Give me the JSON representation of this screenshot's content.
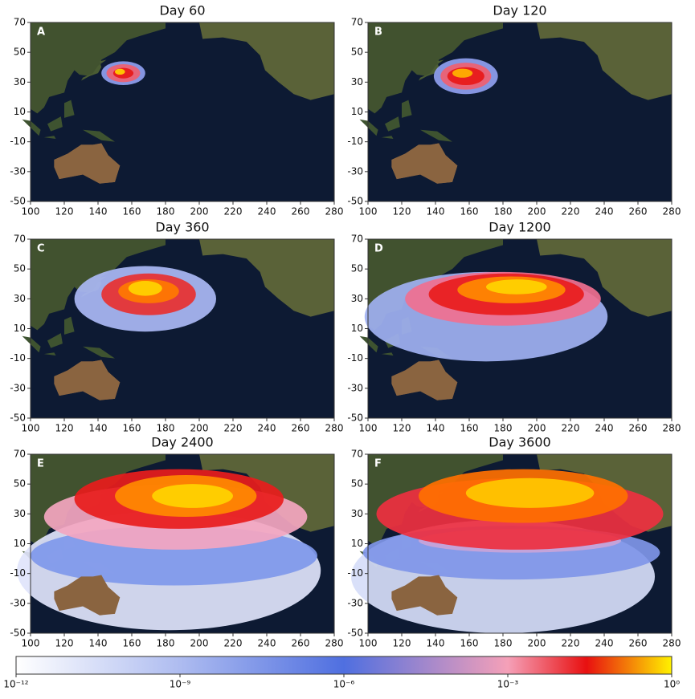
{
  "chart_data": [
    {
      "type": "map",
      "title": "Day 60",
      "letter": "A",
      "xlim": [
        100,
        280
      ],
      "ylim": [
        -50,
        70
      ],
      "xticks": [
        100,
        120,
        140,
        160,
        180,
        200,
        220,
        240,
        260,
        280
      ],
      "yticks": [
        -50,
        -30,
        -10,
        10,
        30,
        50,
        70
      ]
    },
    {
      "type": "map",
      "title": "Day 120",
      "letter": "B",
      "xlim": [
        100,
        280
      ],
      "ylim": [
        -50,
        70
      ],
      "xticks": [
        100,
        120,
        140,
        160,
        180,
        200,
        220,
        240,
        260,
        280
      ],
      "yticks": [
        -50,
        -30,
        -10,
        10,
        30,
        50,
        70
      ]
    },
    {
      "type": "map",
      "title": "Day 360",
      "letter": "C",
      "xlim": [
        100,
        280
      ],
      "ylim": [
        -50,
        70
      ],
      "xticks": [
        100,
        120,
        140,
        160,
        180,
        200,
        220,
        240,
        260,
        280
      ],
      "yticks": [
        -50,
        -30,
        -10,
        10,
        30,
        50,
        70
      ]
    },
    {
      "type": "map",
      "title": "Day 1200",
      "letter": "D",
      "xlim": [
        100,
        280
      ],
      "ylim": [
        -50,
        70
      ],
      "xticks": [
        100,
        120,
        140,
        160,
        180,
        200,
        220,
        240,
        260,
        280
      ],
      "yticks": [
        -50,
        -30,
        -10,
        10,
        30,
        50,
        70
      ]
    },
    {
      "type": "map",
      "title": "Day 2400",
      "letter": "E",
      "xlim": [
        100,
        280
      ],
      "ylim": [
        -50,
        70
      ],
      "xticks": [
        100,
        120,
        140,
        160,
        180,
        200,
        220,
        240,
        260,
        280
      ],
      "yticks": [
        -50,
        -30,
        -10,
        10,
        30,
        50,
        70
      ]
    },
    {
      "type": "map",
      "title": "Day 3600",
      "letter": "F",
      "xlim": [
        100,
        280
      ],
      "ylim": [
        -50,
        70
      ],
      "xticks": [
        100,
        120,
        140,
        160,
        180,
        200,
        220,
        240,
        260,
        280
      ],
      "yticks": [
        -50,
        -30,
        -10,
        10,
        30,
        50,
        70
      ]
    },
    {
      "type": "colorbar",
      "log_scale": true,
      "clim": [
        1e-12,
        1
      ],
      "ticks": [
        {
          "value": 1e-12,
          "label": "10⁻¹²"
        },
        {
          "value": 1e-09,
          "label": "10⁻⁹"
        },
        {
          "value": 1e-06,
          "label": "10⁻⁶"
        },
        {
          "value": 0.001,
          "label": "10⁻³"
        },
        {
          "value": 1,
          "label": "10⁰"
        }
      ]
    }
  ]
}
